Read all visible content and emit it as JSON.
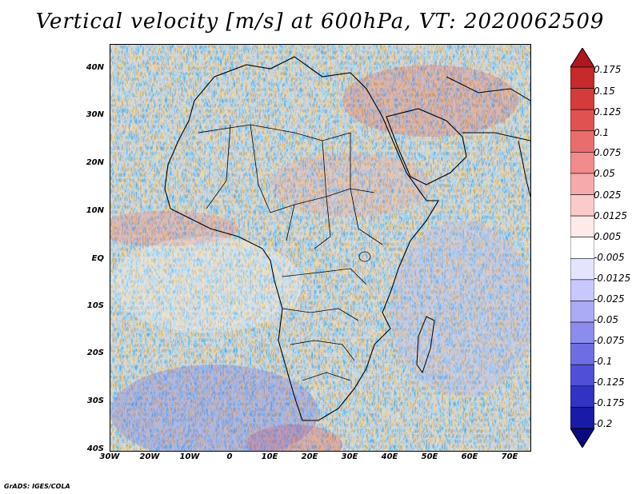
{
  "title": "Vertical velocity [m/s] at 600hPa, VT: 2020062509",
  "lat_ticks": [
    "40N",
    "30N",
    "20N",
    "10N",
    "EQ",
    "10S",
    "20S",
    "30S",
    "40S"
  ],
  "lon_ticks": [
    "30W",
    "20W",
    "10W",
    "0",
    "10E",
    "20E",
    "30E",
    "40E",
    "50E",
    "60E",
    "70E"
  ],
  "colorbar": {
    "labels": [
      "0.175",
      "0.15",
      "0.125",
      "0.1",
      "0.075",
      "0.05",
      "0.025",
      "0.0125",
      "0.005",
      "-0.005",
      "-0.0125",
      "-0.025",
      "-0.05",
      "-0.075",
      "-0.1",
      "-0.125",
      "-0.175",
      "-0.2"
    ],
    "colors": [
      "#b0171f",
      "#c62a2a",
      "#d43c3c",
      "#e05252",
      "#ea6d6d",
      "#f28b8b",
      "#f7aaaa",
      "#fbcaca",
      "#ffeaea",
      "#ffffff",
      "#e4e4ff",
      "#c8c8ff",
      "#aaaaf5",
      "#8c8cec",
      "#6e6ee2",
      "#5050d6",
      "#3232c4",
      "#1a1aa8",
      "#0a0a80"
    ]
  },
  "footer": "GrADS: IGES/COLA"
}
